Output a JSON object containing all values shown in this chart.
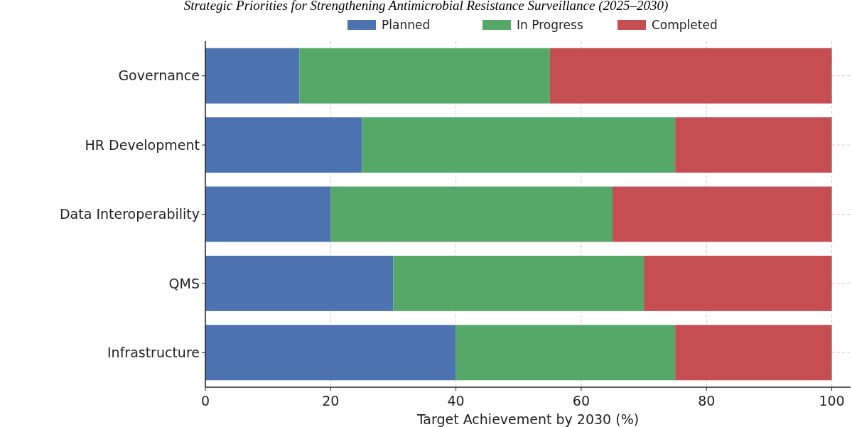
{
  "chart_data": {
    "type": "bar",
    "orientation": "horizontal",
    "stacked": true,
    "title": "Strategic Priorities for Strengthening Antimicrobial Resistance Surveillance (2025–2030)",
    "xlabel": "Target Achievement by 2030 (%)",
    "categories": [
      "Governance",
      "HR Development",
      "Data Interoperability",
      "QMS",
      "Infrastructure"
    ],
    "series": [
      {
        "name": "Planned",
        "color": "#4c72b0",
        "values": [
          15,
          25,
          20,
          30,
          40
        ]
      },
      {
        "name": "In Progress",
        "color": "#55a868",
        "values": [
          40,
          50,
          45,
          40,
          35
        ]
      },
      {
        "name": "Completed",
        "color": "#c44e52",
        "values": [
          45,
          25,
          35,
          30,
          25
        ]
      }
    ],
    "xlim": [
      0,
      103
    ],
    "xticks": [
      0,
      20,
      40,
      60,
      80,
      100
    ],
    "grid": true,
    "legend": "top"
  }
}
